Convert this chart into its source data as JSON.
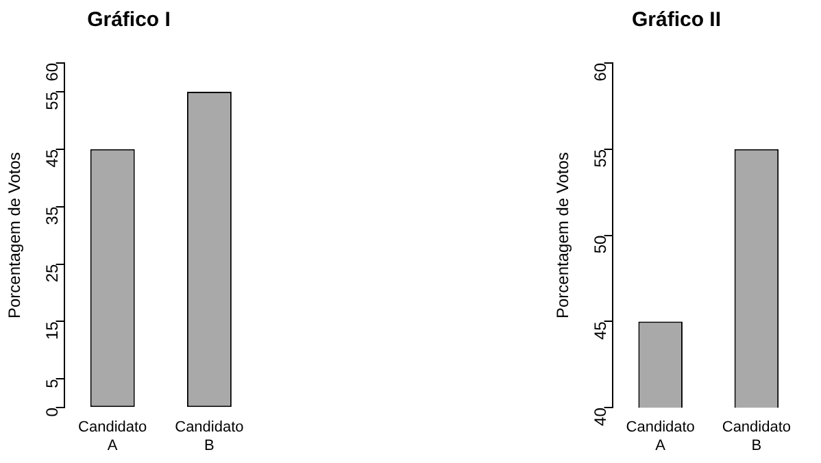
{
  "chart_data": [
    {
      "type": "bar",
      "title": "Gráfico I",
      "ylabel": "Porcentagem de Votos",
      "categories": [
        "Candidato A",
        "Candidato B"
      ],
      "values": [
        45,
        55
      ],
      "color": "#a9a9a9",
      "ylim": [
        0,
        60
      ],
      "yticks": [
        0,
        5,
        15,
        25,
        35,
        45,
        55,
        60
      ]
    },
    {
      "type": "bar",
      "title": "Gráfico II",
      "ylabel": "Porcentagem de Votos",
      "categories": [
        "Candidato A",
        "Candidato B"
      ],
      "values": [
        45,
        55
      ],
      "color": "#a9a9a9",
      "ylim": [
        40,
        60
      ],
      "yticks": [
        40,
        45,
        50,
        55,
        60
      ]
    }
  ]
}
